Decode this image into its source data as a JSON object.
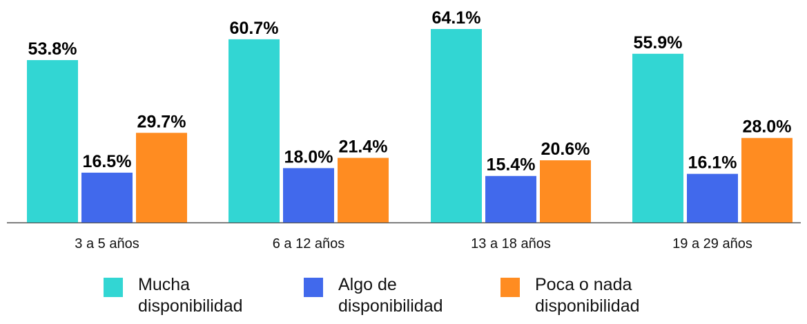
{
  "chart_data": {
    "type": "bar",
    "categories": [
      "3 a 5 años",
      "6 a 12 años",
      "13 a 18 años",
      "19 a 29 años"
    ],
    "series": [
      {
        "name": "Mucha\ndisponibilidad",
        "color": "#32D6D3",
        "values": [
          53.8,
          60.7,
          64.1,
          55.9
        ],
        "labels": [
          "53.8%",
          "60.7%",
          "64.1%",
          "55.9%"
        ]
      },
      {
        "name": "Algo de\ndisponibilidad",
        "color": "#4169EC",
        "values": [
          16.5,
          18.0,
          15.4,
          16.1
        ],
        "labels": [
          "16.5%",
          "18.0%",
          "15.4%",
          "16.1%"
        ]
      },
      {
        "name": "Poca o nada\ndisponibilidad",
        "color": "#FF8C21",
        "values": [
          29.7,
          21.4,
          20.6,
          28.0
        ],
        "labels": [
          "29.7%",
          "21.4%",
          "20.6%",
          "28.0%"
        ]
      }
    ],
    "ylim": [
      0,
      64.1
    ],
    "grid": false,
    "legend_position": "bottom"
  }
}
